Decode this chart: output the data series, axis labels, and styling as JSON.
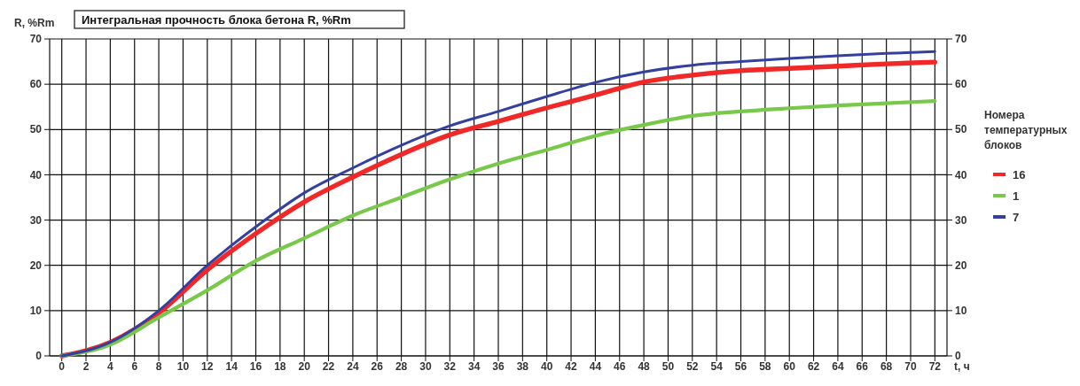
{
  "chart_data": {
    "type": "line",
    "title": "Интегральная прочность блока бетона R, %Rm",
    "ylabel": "R, %Rm",
    "xlabel": "t, ч",
    "legend_title": "Номера температурных блоков",
    "legend": "right",
    "grid": true,
    "line_style": "solid",
    "marker": "none",
    "x": [
      0,
      4,
      8,
      12,
      16,
      20,
      24,
      28,
      32,
      36,
      40,
      44,
      48,
      52,
      56,
      60,
      64,
      68,
      72
    ],
    "xlim": [
      -1,
      73
    ],
    "xticks": [
      0,
      2,
      4,
      6,
      8,
      10,
      12,
      14,
      16,
      18,
      20,
      22,
      24,
      26,
      28,
      30,
      32,
      34,
      36,
      38,
      40,
      42,
      44,
      46,
      48,
      50,
      52,
      54,
      56,
      58,
      60,
      62,
      64,
      66,
      68,
      70,
      72
    ],
    "ylim": [
      0,
      70
    ],
    "yticks": [
      0,
      10,
      20,
      30,
      40,
      50,
      60,
      70
    ],
    "y2lim": [
      0,
      70
    ],
    "y2ticks": [
      0,
      10,
      20,
      30,
      40,
      50,
      60,
      70
    ],
    "series": [
      {
        "name": "16",
        "color": "#f02828",
        "values": [
          0,
          3,
          9.5,
          19,
          27,
          34,
          39.5,
          44.5,
          48.8,
          51.8,
          54.8,
          57.6,
          60.5,
          62,
          63,
          63.5,
          64,
          64.5,
          64.9
        ]
      },
      {
        "name": "1",
        "color": "#78c84a",
        "values": [
          0,
          2.5,
          8.5,
          14.5,
          21,
          26,
          31,
          35,
          39,
          42.5,
          45.5,
          48.6,
          51,
          53,
          54,
          54.7,
          55.3,
          55.8,
          56.3
        ]
      },
      {
        "name": "7",
        "color": "#3340a0",
        "values": [
          0,
          3,
          10,
          20,
          28.5,
          36,
          41.5,
          46.5,
          50.8,
          54,
          57.3,
          60.4,
          62.7,
          64.2,
          65,
          65.7,
          66.3,
          66.8,
          67.2
        ]
      }
    ]
  }
}
